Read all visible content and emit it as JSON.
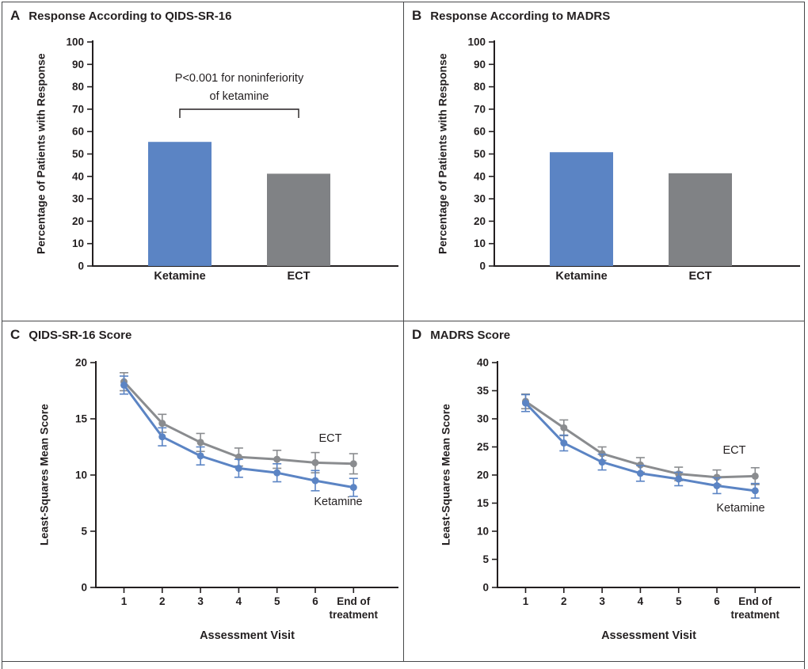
{
  "figure": {
    "panels": [
      {
        "label": "A",
        "title": "Response According to QIDS-SR-16"
      },
      {
        "label": "B",
        "title": "Response According to MADRS"
      },
      {
        "label": "C",
        "title": "QIDS-SR-16 Score"
      },
      {
        "label": "D",
        "title": "MADRS Score"
      }
    ]
  },
  "colors": {
    "ketamine_blue": "#5b84c4",
    "ect_gray_bar": "#808285",
    "ect_gray_line": "#8a8c8f",
    "text": "#231f20",
    "panel_border": "#47484a"
  },
  "chart_data": [
    {
      "panel": "A",
      "type": "bar",
      "title": "Response According to QIDS-SR-16",
      "categories": [
        "Ketamine",
        "ECT"
      ],
      "values": [
        55.4,
        41.2
      ],
      "bar_colors": [
        "#5b84c4",
        "#808285"
      ],
      "ylabel": "Percentage of Patients with Response",
      "xlabel": "",
      "ylim": [
        0,
        100
      ],
      "yticks": [
        0,
        10,
        20,
        30,
        40,
        50,
        60,
        70,
        80,
        90,
        100
      ],
      "grid": false,
      "annotation": {
        "text_lines": [
          "P<0.001 for noninferiority",
          "of ketamine"
        ],
        "bracket_between": [
          "Ketamine",
          "ECT"
        ]
      }
    },
    {
      "panel": "B",
      "type": "bar",
      "title": "Response According to MADRS",
      "categories": [
        "Ketamine",
        "ECT"
      ],
      "values": [
        50.8,
        41.4
      ],
      "bar_colors": [
        "#5b84c4",
        "#808285"
      ],
      "ylabel": "Percentage of Patients with Response",
      "xlabel": "",
      "ylim": [
        0,
        100
      ],
      "yticks": [
        0,
        10,
        20,
        30,
        40,
        50,
        60,
        70,
        80,
        90,
        100
      ],
      "grid": false
    },
    {
      "panel": "C",
      "type": "line",
      "title": "QIDS-SR-16 Score",
      "x_categories": [
        "1",
        "2",
        "3",
        "4",
        "5",
        "6",
        "End of\ntreatment"
      ],
      "xlabel": "Assessment Visit",
      "ylabel": "Least-Squares Mean Score",
      "ylim": [
        0,
        20
      ],
      "yticks": [
        0,
        5,
        10,
        15,
        20
      ],
      "grid": false,
      "legend_position": "inline-labels",
      "series": [
        {
          "name": "ECT",
          "color": "#8a8c8f",
          "values": [
            18.3,
            14.6,
            12.9,
            11.6,
            11.4,
            11.1,
            11.0
          ],
          "err": [
            0.8,
            0.8,
            0.8,
            0.8,
            0.8,
            0.9,
            0.9
          ]
        },
        {
          "name": "Ketamine",
          "color": "#5b84c4",
          "values": [
            18.0,
            13.4,
            11.7,
            10.6,
            10.2,
            9.5,
            8.9
          ],
          "err": [
            0.8,
            0.8,
            0.8,
            0.8,
            0.8,
            0.9,
            0.8
          ]
        }
      ]
    },
    {
      "panel": "D",
      "type": "line",
      "title": "MADRS Score",
      "x_categories": [
        "1",
        "2",
        "3",
        "4",
        "5",
        "6",
        "End of\ntreatment"
      ],
      "xlabel": "Assessment Visit",
      "ylabel": "Least-Squares Mean Score",
      "ylim": [
        0,
        40
      ],
      "yticks": [
        0,
        5,
        10,
        15,
        20,
        25,
        30,
        35,
        40
      ],
      "grid": false,
      "legend_position": "inline-labels",
      "series": [
        {
          "name": "ECT",
          "color": "#8a8c8f",
          "values": [
            33.1,
            28.4,
            23.8,
            21.8,
            20.2,
            19.6,
            19.8
          ],
          "err": [
            1.3,
            1.4,
            1.2,
            1.3,
            1.2,
            1.3,
            1.5
          ]
        },
        {
          "name": "Ketamine",
          "color": "#5b84c4",
          "values": [
            32.8,
            25.7,
            22.3,
            20.3,
            19.3,
            18.1,
            17.2
          ],
          "err": [
            1.5,
            1.4,
            1.4,
            1.4,
            1.2,
            1.4,
            1.3
          ]
        }
      ]
    }
  ]
}
